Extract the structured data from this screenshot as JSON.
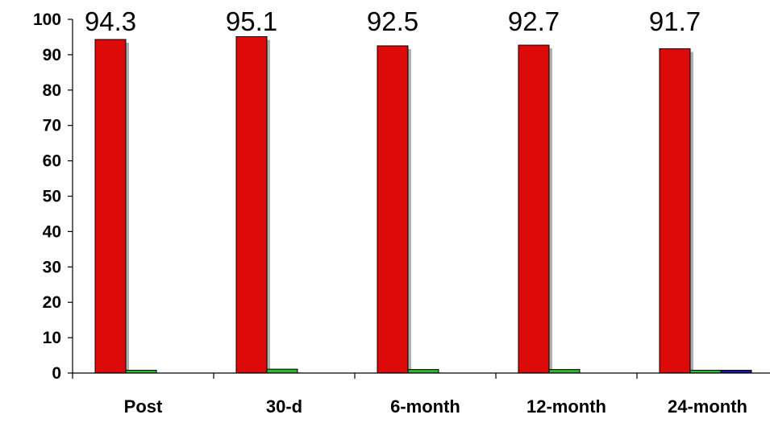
{
  "chart_data": {
    "type": "bar",
    "categories": [
      "Post",
      "30-d",
      "6-month",
      "12-month",
      "24-month"
    ],
    "series": [
      {
        "values": [
          94.3,
          95.1,
          92.5,
          92.7,
          91.7
        ],
        "color": "#dd0a0a"
      },
      {
        "values": [
          0.8,
          1.1,
          1.0,
          1.0,
          0.8
        ],
        "color": "#2fb52f"
      },
      {
        "values": [
          0,
          0,
          0,
          0,
          0.8
        ],
        "color": "#1a1a9e"
      }
    ],
    "data_labels": [
      "94.3",
      "95.1",
      "92.5",
      "92.7",
      "91.7"
    ],
    "ylim": [
      0,
      100
    ],
    "yticks": [
      0,
      10,
      20,
      30,
      40,
      50,
      60,
      70,
      80,
      90,
      100
    ],
    "xlabel": "",
    "ylabel": "",
    "grid": false,
    "legend": "none"
  }
}
